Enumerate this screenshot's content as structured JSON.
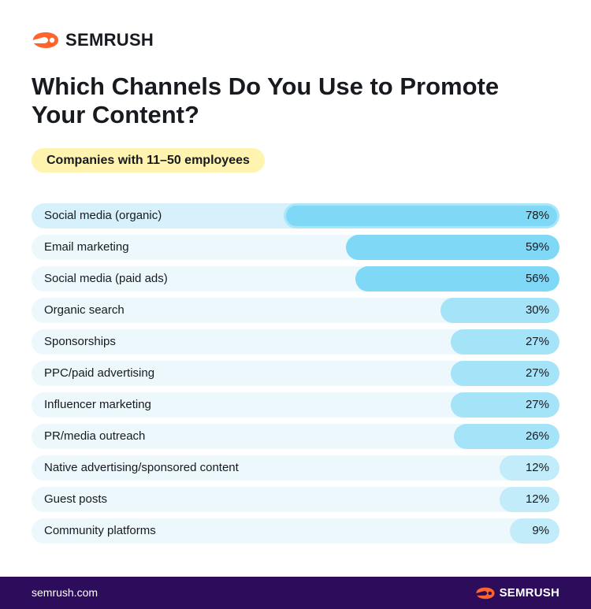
{
  "brand": {
    "name": "SEMRUSH",
    "accent": "#ff642d"
  },
  "title": "Which Channels Do You Use to Promote Your Content?",
  "segment_label": "Companies with 11–50 employees",
  "footer": {
    "url": "semrush.com",
    "brand": "SEMRUSH"
  },
  "colors": {
    "bar_strong": "#7fd8f6",
    "bar_medium": "#a5e3f8",
    "bar_light": "#c2ecfa",
    "row_bg": "#edf8fd",
    "footer_bg": "#2d0c5c",
    "pill_bg": "#fff3b0"
  },
  "chart_data": {
    "type": "bar",
    "orientation": "horizontal",
    "categories": [
      "Social media (organic)",
      "Email marketing",
      "Social media (paid ads)",
      "Organic search",
      "Sponsorships",
      "PPC/paid advertising",
      "Influencer marketing",
      "PR/media outreach",
      "Native advertising/sponsored content",
      "Guest posts",
      "Community platforms"
    ],
    "values": [
      78,
      59,
      56,
      30,
      27,
      27,
      27,
      26,
      12,
      12,
      9
    ],
    "labels": [
      "78%",
      "59%",
      "56%",
      "30%",
      "27%",
      "27%",
      "27%",
      "26%",
      "12%",
      "12%",
      "9%"
    ],
    "unit": "%",
    "xlim": [
      0,
      100
    ],
    "highlighted_category": "Social media (organic)"
  }
}
